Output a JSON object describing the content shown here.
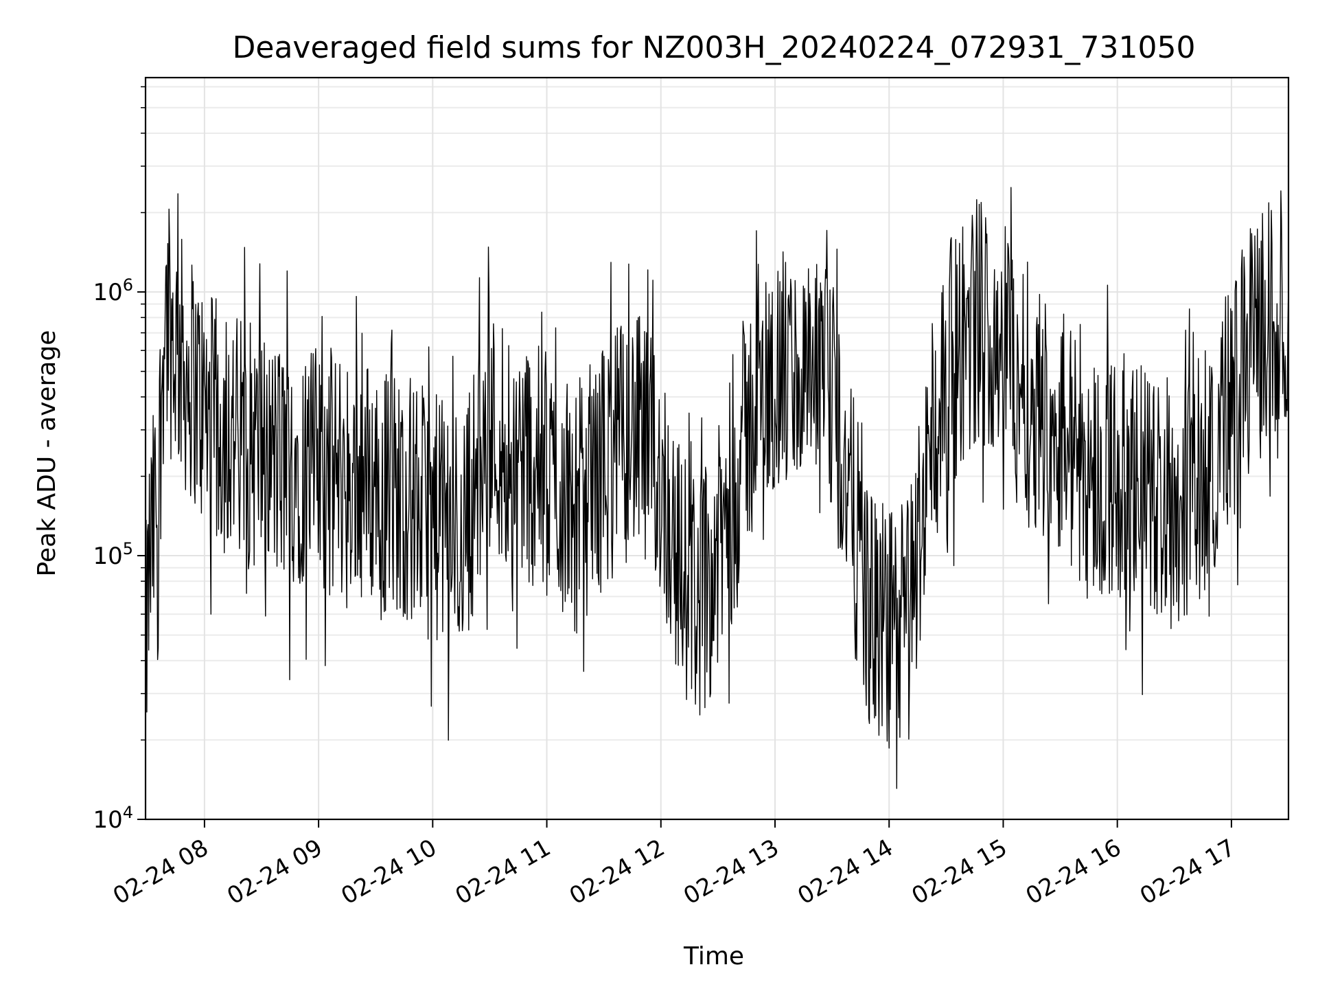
{
  "chart_data": {
    "type": "line",
    "title": "Deaveraged field sums for NZ003H_20240224_072931_731050",
    "xlabel": "Time",
    "ylabel": "Peak ADU - average",
    "y_scale": "log",
    "ylim": [
      10000,
      6500000
    ],
    "xlim": [
      "2024-02-24 07:29",
      "2024-02-24 17:30"
    ],
    "grid": true,
    "line_color": "#000000",
    "x_ticks": [
      {
        "time": "2024-02-24 08:00",
        "label": "02-24 08"
      },
      {
        "time": "2024-02-24 09:00",
        "label": "02-24 09"
      },
      {
        "time": "2024-02-24 10:00",
        "label": "02-24 10"
      },
      {
        "time": "2024-02-24 11:00",
        "label": "02-24 11"
      },
      {
        "time": "2024-02-24 12:00",
        "label": "02-24 12"
      },
      {
        "time": "2024-02-24 13:00",
        "label": "02-24 13"
      },
      {
        "time": "2024-02-24 14:00",
        "label": "02-24 14"
      },
      {
        "time": "2024-02-24 15:00",
        "label": "02-24 15"
      },
      {
        "time": "2024-02-24 16:00",
        "label": "02-24 16"
      },
      {
        "time": "2024-02-24 17:00",
        "label": "02-24 17"
      }
    ],
    "y_ticks": [
      {
        "value": 10000,
        "base": "10",
        "exp": "4"
      },
      {
        "value": 100000,
        "base": "10",
        "exp": "5"
      },
      {
        "value": 1000000,
        "base": "10",
        "exp": "6"
      }
    ],
    "series": [
      {
        "points": [
          [
            "2024-02-24 07:29",
            40000
          ],
          [
            "2024-02-24 07:31",
            90000
          ],
          [
            "2024-02-24 07:33",
            120000
          ],
          [
            "2024-02-24 07:36",
            200000
          ],
          [
            "2024-02-24 07:39",
            900000
          ],
          [
            "2024-02-24 07:42",
            700000
          ],
          [
            "2024-02-24 07:46",
            600000
          ],
          [
            "2024-02-24 07:50",
            500000
          ],
          [
            "2024-02-24 07:55",
            450000
          ],
          [
            "2024-02-24 08:00",
            350000
          ],
          [
            "2024-02-24 08:10",
            300000
          ],
          [
            "2024-02-24 08:20",
            280000
          ],
          [
            "2024-02-24 08:30",
            250000
          ],
          [
            "2024-02-24 08:40",
            220000
          ],
          [
            "2024-02-24 08:50",
            230000
          ],
          [
            "2024-02-24 09:00",
            210000
          ],
          [
            "2024-02-24 09:15",
            200000
          ],
          [
            "2024-02-24 09:30",
            190000
          ],
          [
            "2024-02-24 09:45",
            170000
          ],
          [
            "2024-02-24 10:00",
            140000
          ],
          [
            "2024-02-24 10:15",
            120000
          ],
          [
            "2024-02-24 10:30",
            300000
          ],
          [
            "2024-02-24 10:45",
            250000
          ],
          [
            "2024-02-24 11:00",
            200000
          ],
          [
            "2024-02-24 11:15",
            150000
          ],
          [
            "2024-02-24 11:30",
            220000
          ],
          [
            "2024-02-24 11:45",
            300000
          ],
          [
            "2024-02-24 12:00",
            200000
          ],
          [
            "2024-02-24 12:10",
            90000
          ],
          [
            "2024-02-24 12:20",
            70000
          ],
          [
            "2024-02-24 12:30",
            100000
          ],
          [
            "2024-02-24 12:45",
            300000
          ],
          [
            "2024-02-24 13:00",
            500000
          ],
          [
            "2024-02-24 13:15",
            450000
          ],
          [
            "2024-02-24 13:30",
            400000
          ],
          [
            "2024-02-24 13:40",
            150000
          ],
          [
            "2024-02-24 13:50",
            60000
          ],
          [
            "2024-02-24 14:00",
            50000
          ],
          [
            "2024-02-24 14:10",
            60000
          ],
          [
            "2024-02-24 14:20",
            200000
          ],
          [
            "2024-02-24 14:30",
            500000
          ],
          [
            "2024-02-24 14:45",
            800000
          ],
          [
            "2024-02-24 15:00",
            700000
          ],
          [
            "2024-02-24 15:15",
            400000
          ],
          [
            "2024-02-24 15:30",
            300000
          ],
          [
            "2024-02-24 15:45",
            200000
          ],
          [
            "2024-02-24 16:00",
            200000
          ],
          [
            "2024-02-24 16:15",
            180000
          ],
          [
            "2024-02-24 16:30",
            150000
          ],
          [
            "2024-02-24 16:45",
            200000
          ],
          [
            "2024-02-24 17:00",
            400000
          ],
          [
            "2024-02-24 17:15",
            700000
          ],
          [
            "2024-02-24 17:30",
            900000
          ]
        ]
      }
    ]
  }
}
